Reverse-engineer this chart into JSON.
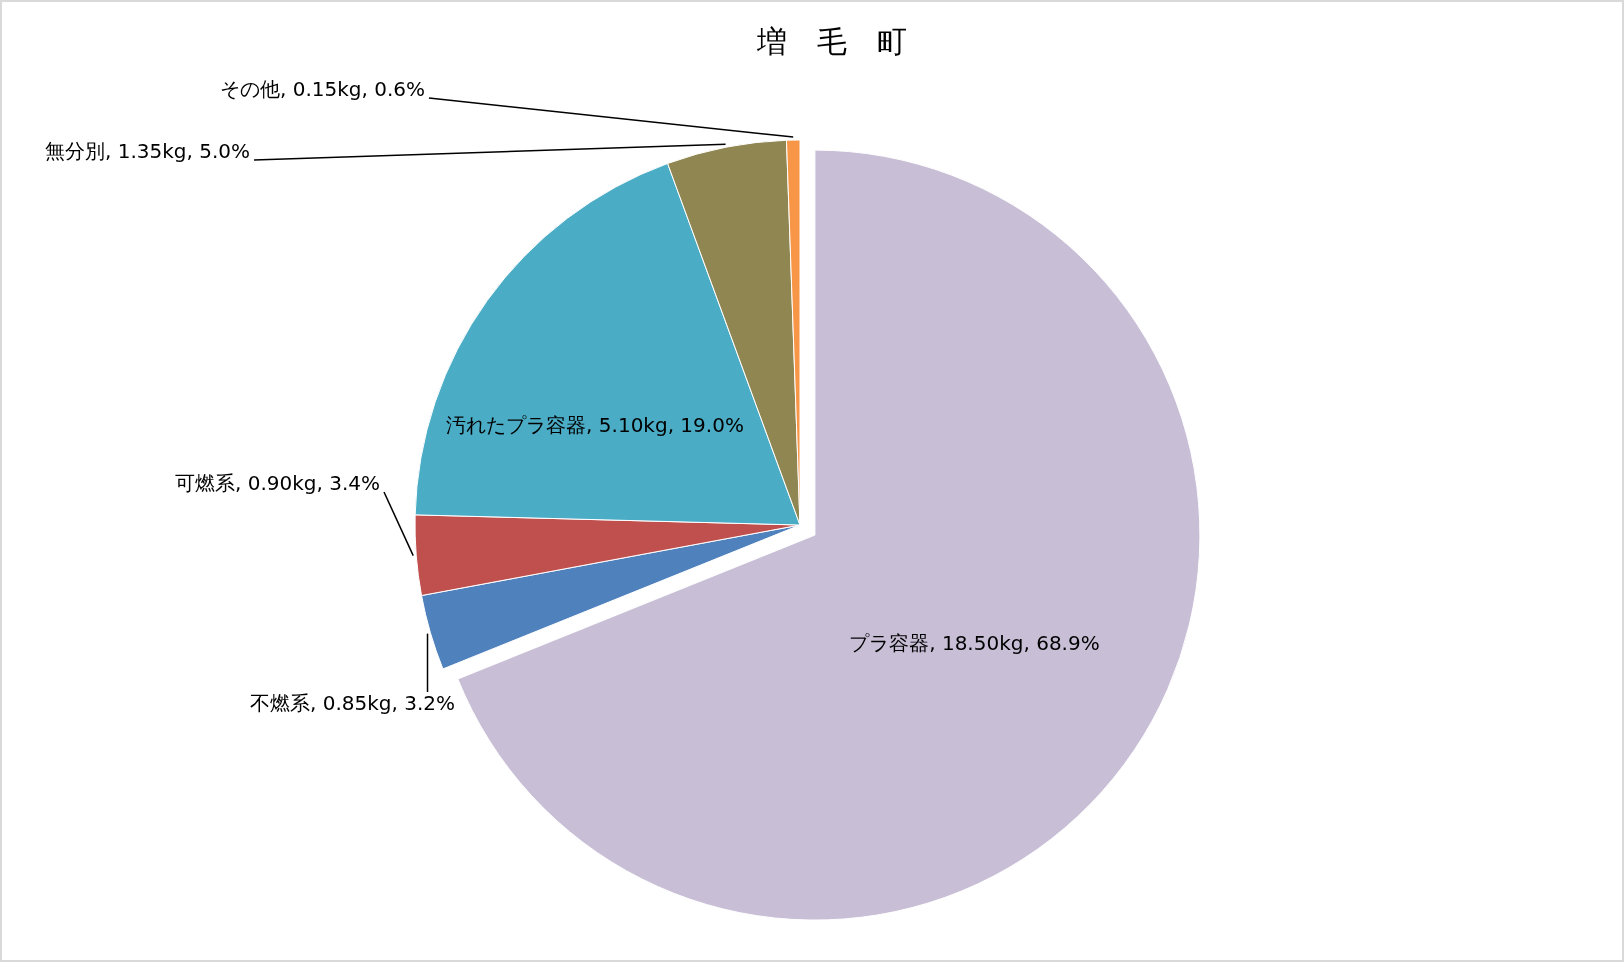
{
  "chart_data": {
    "type": "pie",
    "title": "増　毛　町",
    "categories": [
      "プラ容器",
      "不燃系",
      "可燃系",
      "汚れたプラ容器",
      "無分別",
      "その他"
    ],
    "values": [
      18.5,
      0.85,
      0.9,
      5.1,
      1.35,
      0.15
    ],
    "colors": [
      "#c8bfd7",
      "#4f81bd",
      "#c0504d",
      "#4bacc6",
      "#8f8651",
      "#f79646"
    ],
    "value_labels": [
      "18.50kg, 68.9%",
      "0.85kg, 3.2%",
      "0.90kg, 3.4%",
      "5.10kg, 19.0%",
      "1.35kg, 5.0%",
      "0.15kg, 0.6%"
    ]
  }
}
